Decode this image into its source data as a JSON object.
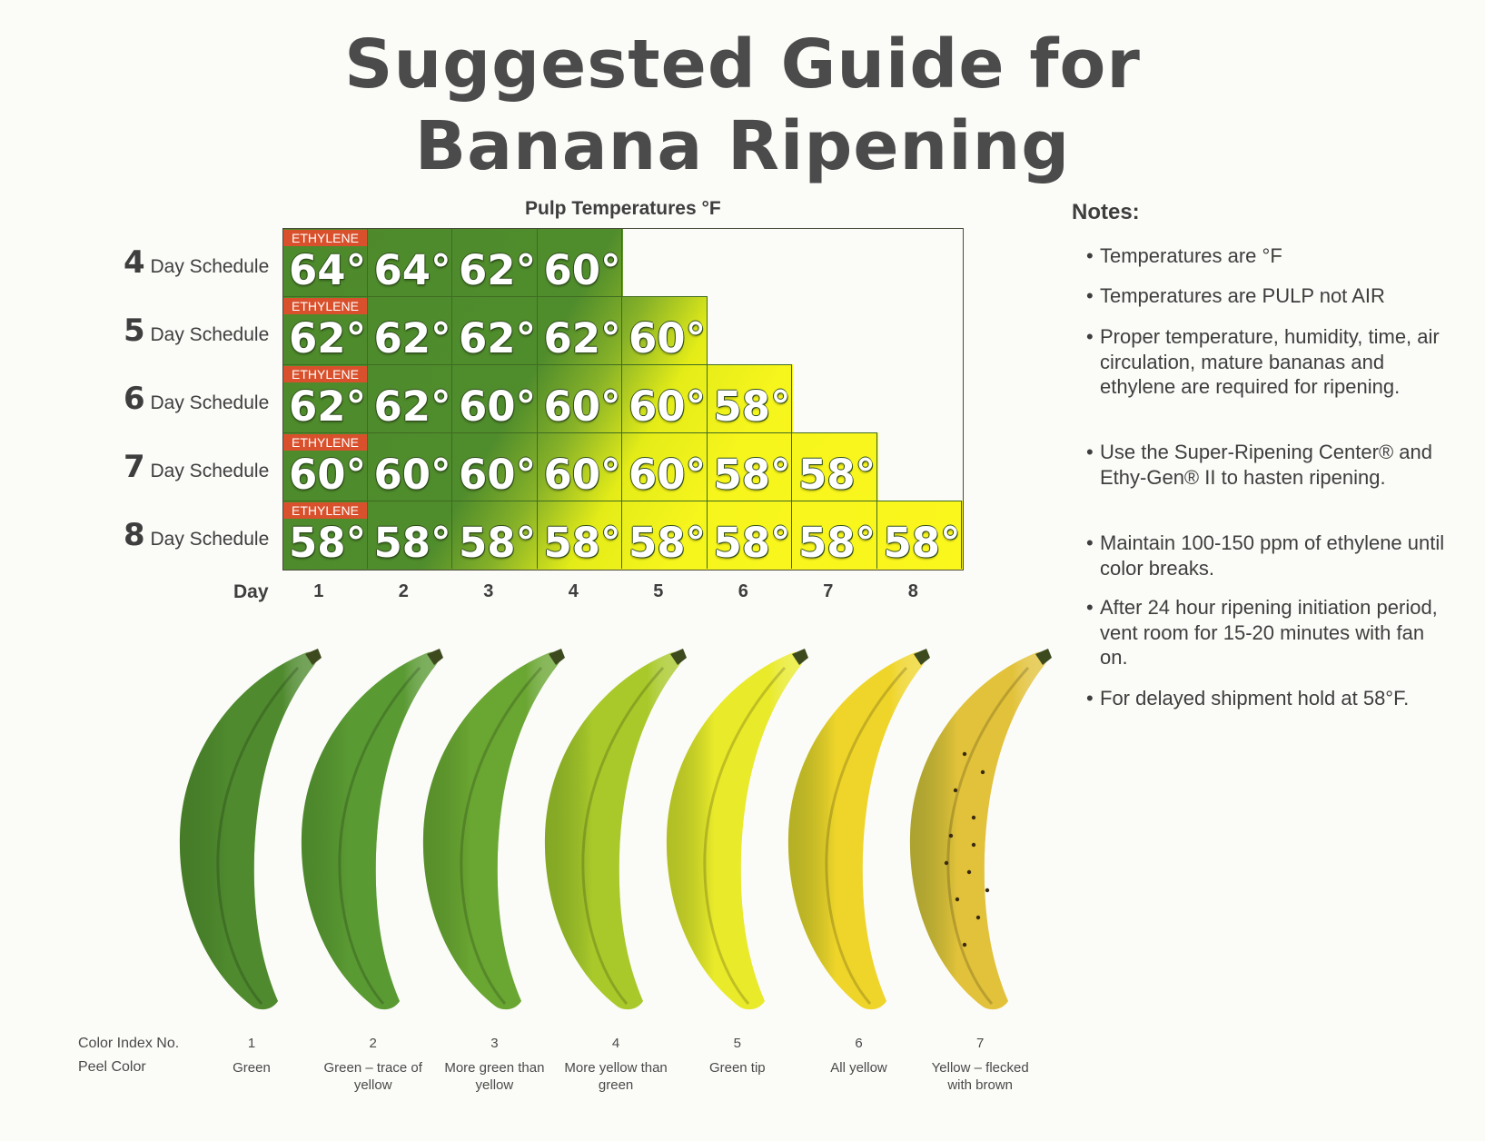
{
  "title": {
    "line1": "Suggested Guide for",
    "line2": "Banana Ripening"
  },
  "table": {
    "header": "Pulp Temperatures °F",
    "ethylene_label": "ETHYLENE",
    "schedules": [
      {
        "num": "4",
        "label": "Day Schedule",
        "temps": [
          "64°",
          "64°",
          "62°",
          "60°"
        ]
      },
      {
        "num": "5",
        "label": "Day Schedule",
        "temps": [
          "62°",
          "62°",
          "62°",
          "62°",
          "60°"
        ]
      },
      {
        "num": "6",
        "label": "Day Schedule",
        "temps": [
          "62°",
          "62°",
          "60°",
          "60°",
          "60°",
          "58°"
        ]
      },
      {
        "num": "7",
        "label": "Day Schedule",
        "temps": [
          "60°",
          "60°",
          "60°",
          "60°",
          "60°",
          "58°",
          "58°"
        ]
      },
      {
        "num": "8",
        "label": "Day Schedule",
        "temps": [
          "58°",
          "58°",
          "58°",
          "58°",
          "58°",
          "58°",
          "58°",
          "58°"
        ]
      }
    ],
    "day_label": "Day",
    "days": [
      "1",
      "2",
      "3",
      "4",
      "5",
      "6",
      "7",
      "8"
    ]
  },
  "notes": {
    "title": "Notes:",
    "items": [
      "Temperatures are °F",
      "Temperatures are PULP not AIR",
      "Proper temperature, humidity, time, air circulation, mature bananas and ethylene are required for ripening.",
      "Use the Super-Ripening Center® and Ethy-Gen® II to hasten ripening.",
      "Maintain 100-150 ppm of ethylene until color breaks.",
      "After 24 hour ripening initiation period, vent room for 15-20 minutes with fan on.",
      "For delayed shipment hold at 58°F."
    ]
  },
  "color_index": {
    "index_label": "Color Index No.",
    "peel_label": "Peel Color",
    "stages": [
      {
        "num": "1",
        "peel": "Green",
        "color": "#4f8a2e"
      },
      {
        "num": "2",
        "peel": "Green – trace of yellow",
        "color": "#5a9a33"
      },
      {
        "num": "3",
        "peel": "More green than yellow",
        "color": "#6aa632"
      },
      {
        "num": "4",
        "peel": "More yellow than green",
        "color": "#a9c92a"
      },
      {
        "num": "5",
        "peel": "Green tip",
        "color": "#e9ea2a"
      },
      {
        "num": "6",
        "peel": "All yellow",
        "color": "#efd52a"
      },
      {
        "num": "7",
        "peel": "Yellow – flecked with brown",
        "color": "#e2c23a"
      }
    ]
  }
}
